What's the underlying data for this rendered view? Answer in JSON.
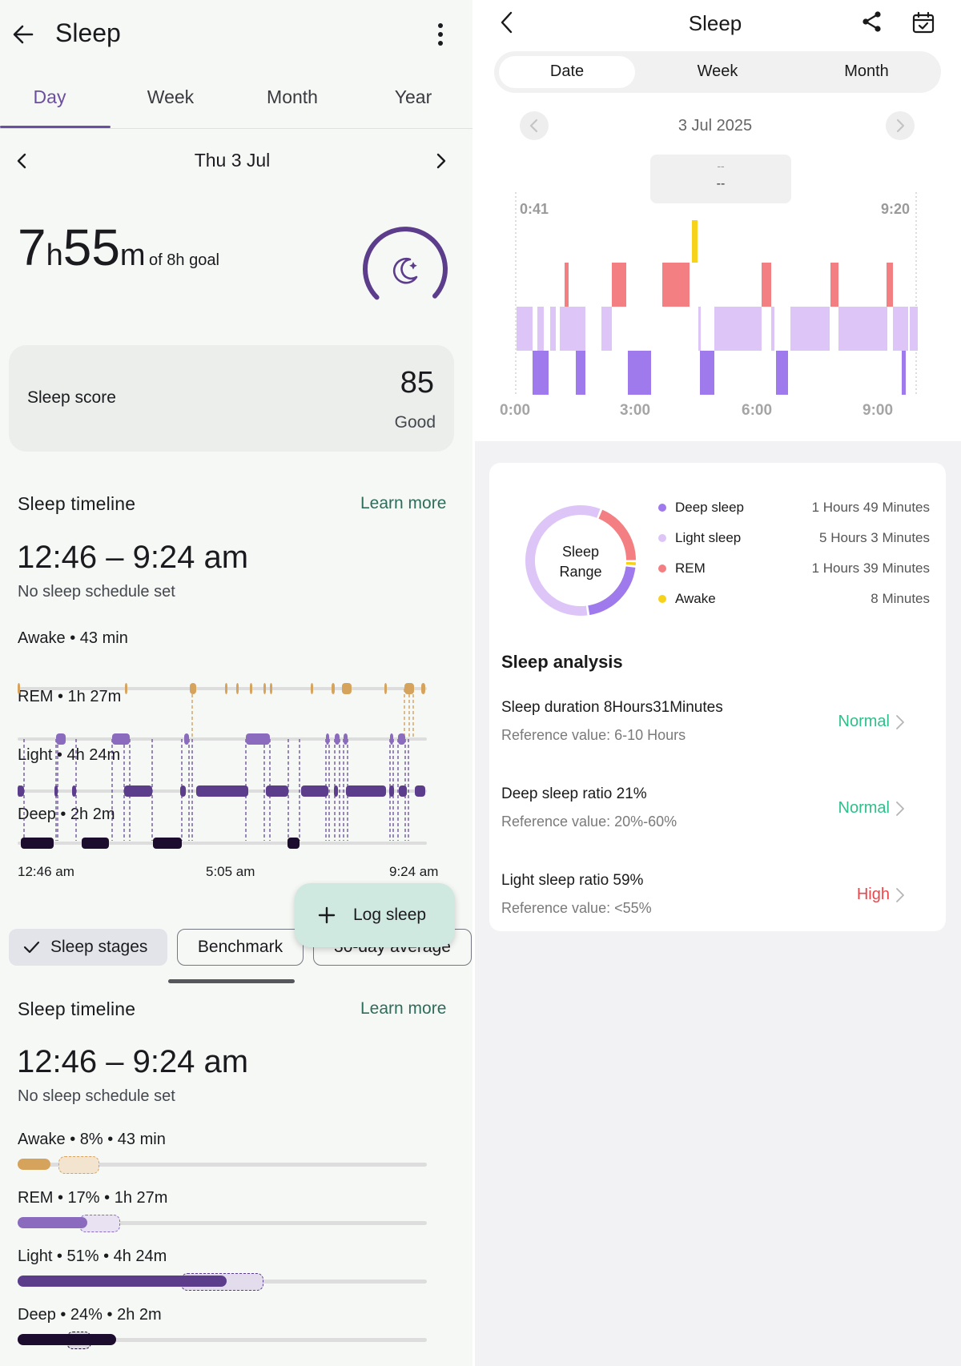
{
  "left": {
    "header": {
      "title": "Sleep"
    },
    "tabs": [
      {
        "label": "Day",
        "active": true
      },
      {
        "label": "Week",
        "active": false
      },
      {
        "label": "Month",
        "active": false
      },
      {
        "label": "Year",
        "active": false
      }
    ],
    "date_nav": {
      "label": "Thu 3 Jul"
    },
    "duration": {
      "hours": "7",
      "hours_unit": "h",
      "minutes": "55",
      "minutes_unit": "m",
      "goal_text": "of 8h goal",
      "goal_progress": 0.99
    },
    "score": {
      "label": "Sleep score",
      "value": "85",
      "rating": "Good"
    },
    "timeline": {
      "title": "Sleep timeline",
      "learn_more": "Learn more",
      "range": "12:46 – 9:24 am",
      "schedule": "No sleep schedule set",
      "stages": [
        {
          "key": "awake",
          "label": "Awake • 43 min",
          "color": "#d6a35d"
        },
        {
          "key": "rem",
          "label": "REM • 1h 27m",
          "color": "#8a6bbd"
        },
        {
          "key": "light",
          "label": "Light • 4h 24m",
          "color": "#5b3d8c"
        },
        {
          "key": "deep",
          "label": "Deep • 2h 2m",
          "color": "#1c0c2d"
        }
      ],
      "axis": [
        "12:46 am",
        "5:05 am",
        "9:24 am"
      ]
    },
    "fab": {
      "label": "Log sleep"
    },
    "chips": [
      {
        "label": "Sleep stages",
        "selected": true
      },
      {
        "label": "Benchmark",
        "selected": false
      },
      {
        "label": "30-day average",
        "selected": false
      }
    ],
    "timeline2": {
      "title": "Sleep timeline",
      "learn_more": "Learn more",
      "range": "12:46 – 9:24 am",
      "schedule": "No sleep schedule set",
      "stages": [
        {
          "label": "Awake • 8% • 43 min",
          "percent": 8,
          "benchmark_low": 10,
          "benchmark_high": 20,
          "color": "#d6a35d",
          "bench_fill": "#f3e4d0",
          "bench_border": "#d6a35d"
        },
        {
          "label": "REM • 17% • 1h 27m",
          "percent": 17,
          "benchmark_low": 15,
          "benchmark_high": 25,
          "color": "#8a6bbd",
          "bench_fill": "#e8e2f2",
          "bench_border": "#8a6bbd"
        },
        {
          "label": "Light • 51% • 4h 24m",
          "percent": 51,
          "benchmark_low": 40,
          "benchmark_high": 60,
          "color": "#5b3d8c",
          "bench_fill": "#e2dcec",
          "bench_border": "#5b3d8c"
        },
        {
          "label": "Deep • 24% • 2h 2m",
          "percent": 24,
          "benchmark_low": 12,
          "benchmark_high": 18,
          "color": "#1c0c2d",
          "bench_fill": "#e0dde5",
          "bench_border": "#1c0c2d"
        }
      ]
    }
  },
  "right": {
    "header": {
      "title": "Sleep"
    },
    "segments": [
      {
        "label": "Date",
        "selected": true
      },
      {
        "label": "Week",
        "selected": false
      },
      {
        "label": "Month",
        "selected": false
      }
    ],
    "date_label": "3 Jul 2025",
    "tooltip": {
      "line1": "--",
      "line2": "--"
    },
    "chart_data": {
      "type": "bar",
      "title": "",
      "start_label": "0:41",
      "end_label": "9:20",
      "x_ticks": [
        "0:00",
        "3:00",
        "6:00",
        "9:00"
      ],
      "xlim": [
        0,
        10
      ],
      "stage_colors": {
        "awake": "#f7d21a",
        "rem": "#f47f82",
        "light": "#ddc6f7",
        "deep": "#9f7aec"
      }
    },
    "donut": {
      "center_line1": "Sleep",
      "center_line2": "Range",
      "segments": [
        {
          "label": "Deep sleep",
          "value_text": "1 Hours 49 Minutes",
          "minutes": 109,
          "color": "#9f7aec"
        },
        {
          "label": "Light sleep",
          "value_text": "5 Hours 3 Minutes",
          "minutes": 303,
          "color": "#ddc6f7"
        },
        {
          "label": "REM",
          "value_text": "1 Hours 39 Minutes",
          "minutes": 99,
          "color": "#f47f82"
        },
        {
          "label": "Awake",
          "value_text": "8 Minutes",
          "minutes": 8,
          "color": "#f7d21a"
        }
      ]
    },
    "analysis": {
      "title": "Sleep analysis",
      "items": [
        {
          "title": "Sleep duration  8Hours31Minutes",
          "ref": "Reference value:  6-10 Hours",
          "status": "Normal",
          "status_color": "#2fbf8c"
        },
        {
          "title": "Deep sleep ratio  21%",
          "ref": "Reference value:  20%-60%",
          "status": "Normal",
          "status_color": "#2fbf8c"
        },
        {
          "title": "Light sleep ratio  59%",
          "ref": "Reference value:  <55%",
          "status": "High",
          "status_color": "#e8474c"
        }
      ]
    }
  }
}
